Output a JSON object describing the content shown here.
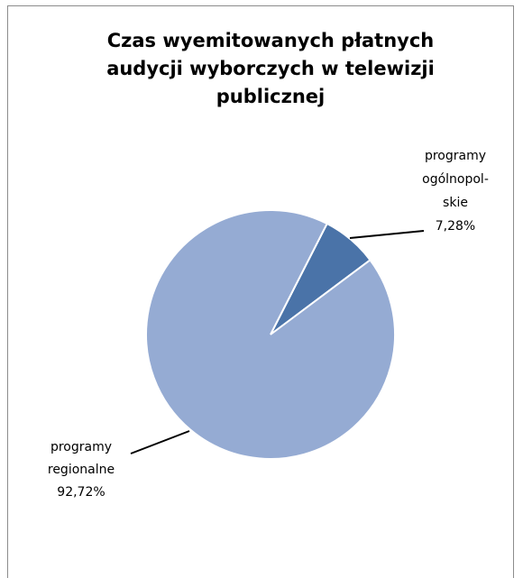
{
  "chart_data": {
    "type": "pie",
    "title": "Czas wyemitowanych płatnych audycji wyborczych w telewizji publicznej",
    "categories": [
      "programy ogólnopol-skie",
      "programy regionalne"
    ],
    "values": [
      7.28,
      92.72
    ],
    "value_labels": [
      "7,28%",
      "92,72%"
    ],
    "colors": [
      "#4a73a8",
      "#95abd3"
    ]
  }
}
